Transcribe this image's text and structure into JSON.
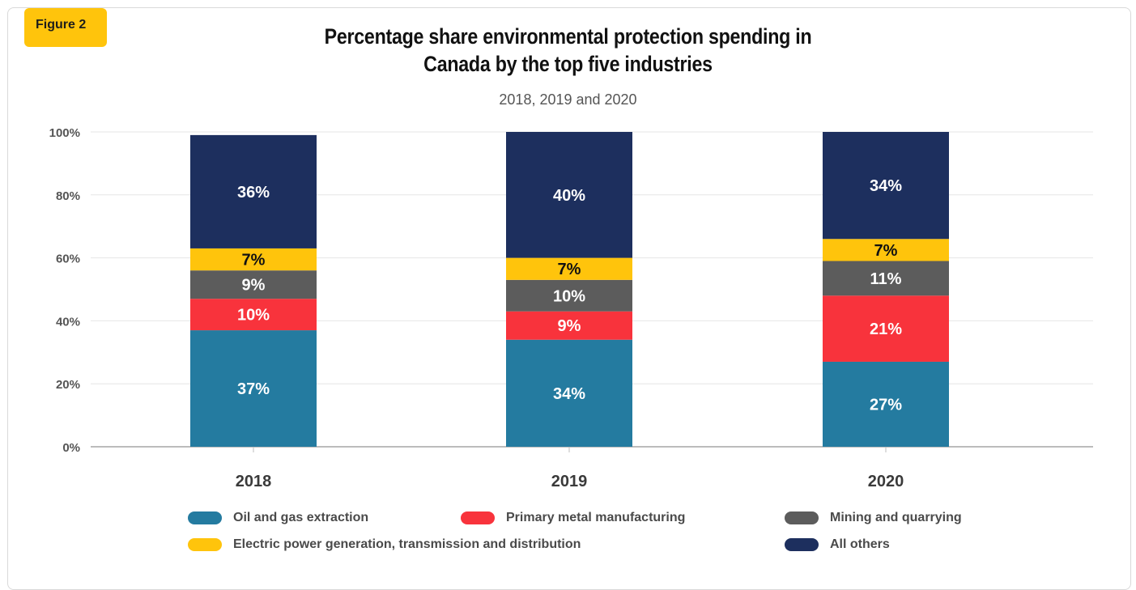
{
  "badge": "Figure 2",
  "chart_data": {
    "type": "bar",
    "stacked": true,
    "title": "Percentage share environmental protection spending in Canada by the top five industries",
    "subtitle": "2018, 2019 and 2020",
    "categories": [
      "2018",
      "2019",
      "2020"
    ],
    "ylim": [
      0,
      100
    ],
    "yticks": [
      "0%",
      "20%",
      "40%",
      "60%",
      "80%",
      "100%"
    ],
    "grid": true,
    "legend_position": "bottom",
    "series": [
      {
        "name": "Oil and gas extraction",
        "color": "#247ba0",
        "values": [
          37,
          34,
          27
        ],
        "labels": [
          "37%",
          "34%",
          "27%"
        ],
        "label_color": "#ffffff"
      },
      {
        "name": "Primary metal manufacturing",
        "color": "#f8333c",
        "values": [
          10,
          9,
          21
        ],
        "labels": [
          "10%",
          "9%",
          "21%"
        ],
        "label_color": "#ffffff"
      },
      {
        "name": "Mining and quarrying",
        "color": "#5c5c5c",
        "values": [
          9,
          10,
          11
        ],
        "labels": [
          "9%",
          "10%",
          "11%"
        ],
        "label_color": "#ffffff"
      },
      {
        "name": "Electric power generation, transmission and distribution",
        "color": "#ffc40c",
        "values": [
          7,
          7,
          7
        ],
        "labels": [
          "7%",
          "7%",
          "7%"
        ],
        "label_color": "#111111"
      },
      {
        "name": "All others",
        "color": "#1d2f5e",
        "values": [
          36,
          40,
          34
        ],
        "labels": [
          "36%",
          "40%",
          "34%"
        ],
        "label_color": "#ffffff"
      }
    ]
  }
}
